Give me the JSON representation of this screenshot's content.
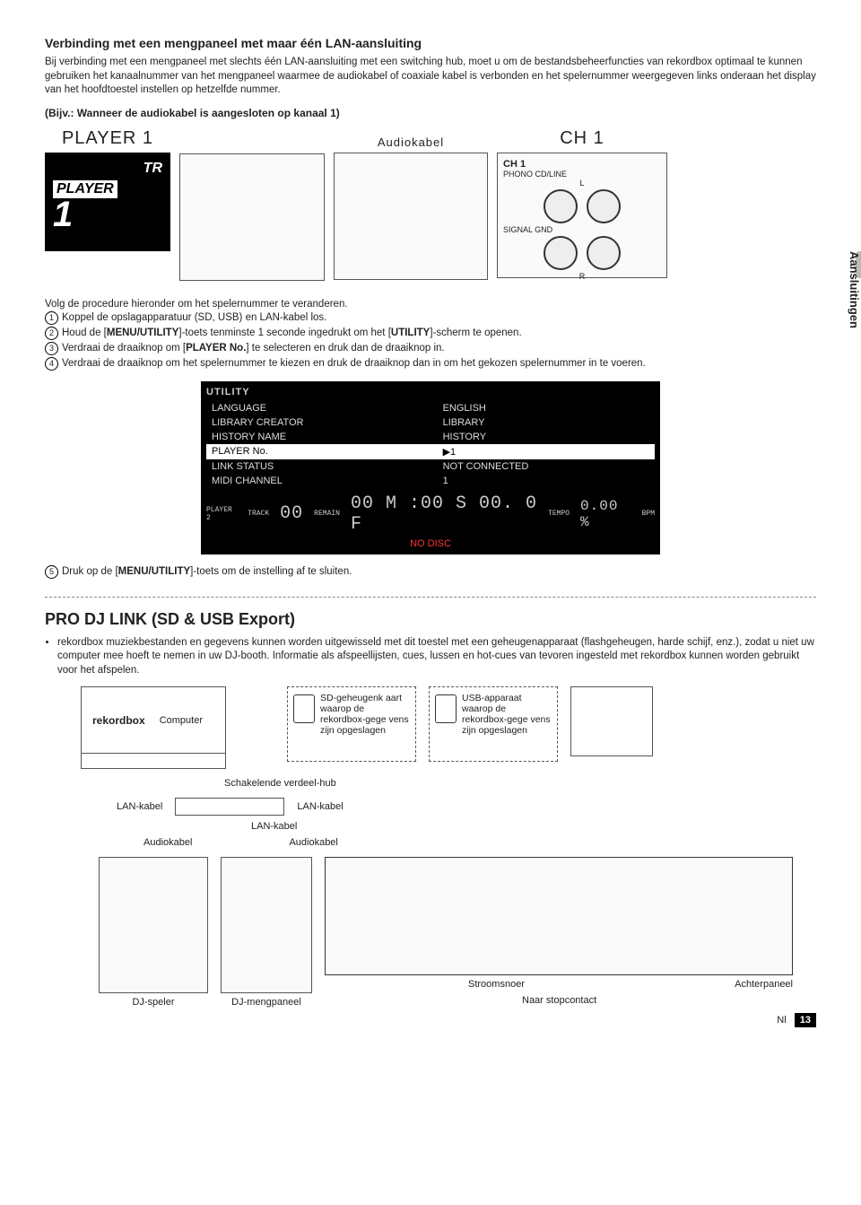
{
  "section1": {
    "title": "Verbinding met een mengpaneel met maar één LAN-aansluiting",
    "intro": "Bij verbinding met een mengpaneel met slechts één LAN-aansluiting met een switching hub, moet u om de bestandsbeheerfuncties van rekordbox optimaal te kunnen gebruiken het kanaalnummer van het mengpaneel waarmee de audiokabel of coaxiale kabel is verbonden en het spelernummer weergegeven links onderaan het display van het hoofdtoestel instellen op hetzelfde nummer.",
    "example": "(Bijv.: Wanneer de audiokabel is aangesloten op kanaal 1)",
    "col_player": "PLAYER 1",
    "col_audiokabel": "Audiokabel",
    "col_ch": "CH 1",
    "player_tr": "TR",
    "player_word": "PLAYER",
    "player_num": "1",
    "ch_panel": {
      "ch1": "CH 1",
      "phono": "PHONO  CD/LINE",
      "l": "L",
      "signal_gnd": "SIGNAL GND",
      "r": "R"
    }
  },
  "side_tab": "Aansluitingen",
  "procedure": {
    "intro": "Volg de procedure hieronder om het spelernummer te veranderen.",
    "s1": "Koppel de opslagapparatuur (SD, USB) en LAN-kabel los.",
    "s2a": "Houd de [",
    "s2b": "MENU/UTILITY",
    "s2c": "]-toets tenminste 1 seconde ingedrukt om het [",
    "s2d": "UTILITY",
    "s2e": "]-scherm te openen.",
    "s3a": "Verdraai de draaiknop om [",
    "s3b": "PLAYER No.",
    "s3c": "] te selecteren en druk dan de draaiknop in.",
    "s4": "Verdraai de draaiknop om het spelernummer te kiezen en druk de draaiknop dan in om het gekozen spelernummer in te voeren.",
    "s5a": "Druk op de [",
    "s5b": "MENU/UTILITY",
    "s5c": "]-toets om de instelling af te sluiten."
  },
  "utility": {
    "header": "UTILITY",
    "rows": [
      [
        "LANGUAGE",
        "ENGLISH"
      ],
      [
        "LIBRARY CREATOR",
        "LIBRARY"
      ],
      [
        "HISTORY NAME",
        "HISTORY"
      ],
      [
        "PLAYER No.",
        "▶1"
      ],
      [
        "LINK STATUS",
        "NOT CONNECTED"
      ],
      [
        "MIDI CHANNEL",
        "1"
      ]
    ],
    "selected_index": 3,
    "track_lbl": "TRACK",
    "remain": "REMAIN",
    "time": "00 M :00 S 00. 0 F",
    "tempo_lbl": "TEMPO",
    "tempo": "0.00 %",
    "bpm": "BPM",
    "nodisc": "NO DISC",
    "player2": "PLAYER 2"
  },
  "section2": {
    "title": "PRO DJ LINK (SD & USB Export)",
    "bullet": "rekordbox muziekbestanden en gegevens kunnen worden uitgewisseld met dit toestel met een geheugenapparaat (flashgeheugen, harde schijf, enz.), zodat u niet uw computer mee hoeft te nemen in uw DJ-booth. Informatie als afspeellijsten, cues, lussen en hot-cues van tevoren ingesteld met rekordbox kunnen worden gebruikt voor het afspelen.",
    "laptop_brand": "rekordbox",
    "laptop_label": "Computer",
    "sd_box": "SD-geheugenk aart waarop de rekordbox-gege vens zijn opgeslagen",
    "usb_box": "USB-apparaat waarop de rekordbox-gege vens zijn opgeslagen",
    "hub": "Schakelende verdeel-hub",
    "lan": "LAN-kabel",
    "audio": "Audiokabel",
    "dj_speler": "DJ-speler",
    "dj_meng": "DJ-mengpaneel",
    "achter": "Achterpaneel",
    "stroom": "Stroomsnoer",
    "naar": "Naar stopcontact"
  },
  "footer": {
    "lang": "Nl",
    "page": "13"
  }
}
